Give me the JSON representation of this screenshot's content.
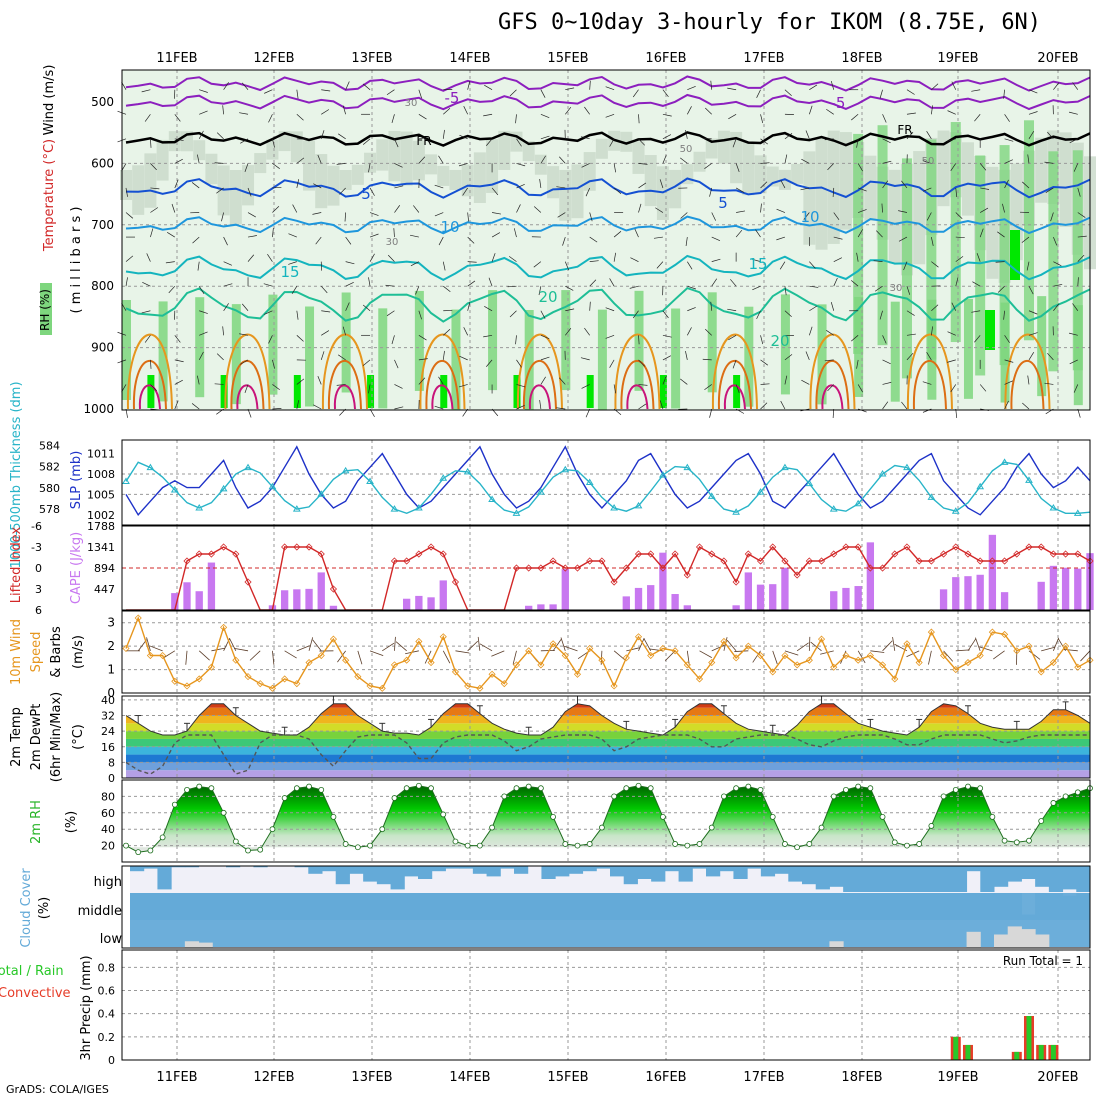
{
  "title": "GFS 0~10day 3-hourly for IKOM (8.75E, 6N)",
  "credit": "GrADS: COLA/IGES",
  "dates": [
    "11FEB",
    "12FEB",
    "13FEB",
    "14FEB",
    "15FEB",
    "16FEB",
    "17FEB",
    "18FEB",
    "19FEB",
    "20FEB"
  ],
  "colors": {
    "rh_light": "#e8f4e8",
    "rh_mid": "#c8d8c8",
    "rh_green": "#7ed67e",
    "rh_bright": "#00e800",
    "iso_purple": "#8c1fbe",
    "iso_blue": "#1450d2",
    "iso_lightblue": "#1e96dc",
    "iso_cyan": "#14b4be",
    "iso_teal": "#1ebe96",
    "iso_orange": "#e6961e",
    "iso_darkorange": "#dc6e14",
    "iso_magenta": "#c8147a",
    "slp": "#1e32c8",
    "thickness": "#28b4c8",
    "lifted": "#d22828",
    "cape": "#c878f0",
    "wind10": "#e6961e",
    "dewpoint": "#555555",
    "rh2m": "#28b428",
    "cloud": "#64aad8",
    "precip_rain": "#28c828",
    "precip_conv": "#e63c28"
  },
  "panels": {
    "upper": {
      "ylabel_rh": "RH (%)",
      "ylabel_temp": "Temperature (°C)",
      "ylabel_wind": "Wind (m/s)",
      "ylabel_mb": "( m i l l i b a r s )",
      "yticks": [
        "500",
        "600",
        "700",
        "800",
        "900",
        "1000"
      ],
      "isotherm_labels": [
        {
          "text": "-5",
          "color": "iso_purple"
        },
        {
          "text": "-5",
          "color": "iso_purple"
        },
        {
          "text": "FR",
          "color": "black"
        },
        {
          "text": "FR",
          "color": "black"
        },
        {
          "text": "5",
          "color": "iso_blue"
        },
        {
          "text": "5",
          "color": "iso_blue"
        },
        {
          "text": "10",
          "color": "iso_lightblue"
        },
        {
          "text": "10",
          "color": "iso_lightblue"
        },
        {
          "text": "15",
          "color": "iso_cyan"
        },
        {
          "text": "15",
          "color": "iso_cyan"
        },
        {
          "text": "20",
          "color": "iso_teal"
        },
        {
          "text": "20",
          "color": "iso_teal"
        },
        {
          "text": "30",
          "color": "gray"
        },
        {
          "text": "30",
          "color": "gray"
        },
        {
          "text": "50",
          "color": "gray"
        },
        {
          "text": "50",
          "color": "gray"
        },
        {
          "text": "30",
          "color": "gray"
        }
      ]
    },
    "thickness": {
      "ylabel_left": "1000-500mb Thickness (dm)",
      "ylabel_right": "SLP (mb)",
      "left_ticks": [
        "584",
        "582",
        "580",
        "578"
      ],
      "right_ticks": [
        "1011",
        "1008",
        "1005",
        "1002"
      ],
      "slp_values": [
        1005,
        1002,
        1004,
        1006,
        1007,
        1006,
        1006,
        1008,
        1010,
        1006,
        1003,
        1004,
        1006,
        1009,
        1012,
        1008,
        1005,
        1003,
        1004,
        1007,
        1009,
        1011,
        1008,
        1005,
        1003,
        1004,
        1006,
        1008,
        1010,
        1012,
        1008,
        1005,
        1003,
        1004,
        1006,
        1009,
        1012,
        1008,
        1005,
        1003,
        1005,
        1007,
        1010,
        1011,
        1008,
        1005,
        1003,
        1004,
        1006,
        1008,
        1010,
        1011,
        1008,
        1004,
        1003,
        1005,
        1007,
        1009,
        1011,
        1008,
        1005,
        1003,
        1004,
        1006,
        1008,
        1010,
        1011,
        1007,
        1005,
        1003,
        1002,
        1004,
        1006,
        1009,
        1011,
        1008,
        1006,
        1007,
        1009,
        1007
      ],
      "thickness_values": [
        580.6,
        582.4,
        581.9,
        581.0,
        579.8,
        578.6,
        578.1,
        578.6,
        579.9,
        581.3,
        581.9,
        581.4,
        580.1,
        578.8,
        578.0,
        578.2,
        579.4,
        580.8,
        581.6,
        581.7,
        580.6,
        579.1,
        578.0,
        577.6,
        578.1,
        579.4,
        580.9,
        581.6,
        581.5,
        580.4,
        578.9,
        577.9,
        577.6,
        578.2,
        579.6,
        581.0,
        581.7,
        581.6,
        580.5,
        579.1,
        578.1,
        577.8,
        578.3,
        579.7,
        581.2,
        582.0,
        581.9,
        580.8,
        579.2,
        578.0,
        577.7,
        578.3,
        579.6,
        581.0,
        581.9,
        581.7,
        580.4,
        578.9,
        578.0,
        577.8,
        578.5,
        579.9,
        581.3,
        582.1,
        581.9,
        580.7,
        579.1,
        578.1,
        577.8,
        578.6,
        580.1,
        581.6,
        582.4,
        582.2,
        580.7,
        579.0,
        578.1,
        577.6,
        577.6,
        577.7
      ],
      "grid_values": [
        1008,
        1005
      ]
    },
    "cape": {
      "ylabel_left": "Lifted Index",
      "ylabel_right": "CAPE (J/kg)",
      "left_ticks": [
        "-6",
        "-3",
        "0",
        "3",
        "6"
      ],
      "right_ticks": [
        "1788",
        "1341",
        "894",
        "447"
      ],
      "lifted_values": [
        6,
        6,
        6,
        6,
        6,
        -1,
        -2,
        -2,
        -3,
        -2,
        2,
        6,
        6,
        -3,
        -3,
        -3,
        -2,
        3,
        6,
        6,
        6,
        6,
        -1,
        -1,
        -2,
        -3,
        -2,
        2,
        6,
        6,
        6,
        6,
        0,
        0,
        0,
        -1,
        0,
        0,
        -1,
        -1,
        2,
        0,
        -2,
        -2,
        0,
        -2,
        1,
        -3,
        -2,
        -1,
        2,
        -2,
        -1,
        -3,
        -1,
        1,
        -1,
        -1,
        -2,
        -3,
        -3,
        0,
        0,
        -2,
        -3,
        -1,
        -1,
        -2,
        -3,
        -2,
        -1,
        -1,
        -1,
        -2,
        -3,
        -3,
        -2,
        -2,
        -2,
        -1
      ],
      "cape_values": [
        0,
        0,
        0,
        0,
        360,
        590,
        400,
        1010,
        0,
        0,
        0,
        0,
        100,
        420,
        440,
        450,
        800,
        90,
        0,
        0,
        0,
        0,
        0,
        240,
        300,
        270,
        630,
        0,
        0,
        0,
        0,
        0,
        0,
        90,
        120,
        120,
        870,
        0,
        0,
        0,
        0,
        290,
        470,
        530,
        1220,
        340,
        100,
        0,
        0,
        0,
        100,
        800,
        540,
        550,
        900,
        0,
        0,
        0,
        400,
        470,
        510,
        1440,
        0,
        0,
        0,
        0,
        0,
        440,
        700,
        720,
        750,
        1600,
        380,
        0,
        0,
        600,
        940,
        900,
        880,
        1210
      ],
      "grid_value": 894
    },
    "wind10": {
      "ylabel": "10m Wind Speed & Barbs (m/s)",
      "yticks": [
        "3",
        "2",
        "1",
        "0"
      ],
      "speed_values": [
        1.9,
        3.2,
        1.6,
        1.6,
        0.5,
        0.3,
        0.6,
        1.1,
        2.8,
        1.4,
        0.7,
        0.4,
        0.2,
        0.6,
        0.4,
        1.3,
        1.6,
        2.3,
        1.4,
        0.7,
        0.3,
        0.2,
        1.2,
        1.4,
        2.2,
        1.3,
        2.4,
        0.9,
        0.3,
        0.2,
        0.8,
        0.4,
        1.2,
        1.8,
        1.2,
        2.1,
        1.6,
        0.8,
        1.9,
        1.4,
        0.3,
        1.5,
        2.4,
        1.6,
        1.9,
        1.8,
        1.2,
        0.6,
        1.3,
        2.2,
        1.5,
        2.0,
        1.6,
        0.9,
        1.6,
        1.2,
        1.4,
        2.3,
        1.1,
        1.6,
        1.4,
        1.6,
        1.2,
        0.6,
        2.1,
        1.3,
        2.6,
        1.6,
        1.0,
        1.3,
        1.6,
        2.6,
        2.5,
        1.8,
        2.0,
        0.9,
        1.3,
        2.0,
        1.1,
        1.4
      ]
    },
    "temp2m": {
      "ylabel": "2m Temp 2m DewPt (6hr Min/Max) (°C)",
      "yticks": [
        "40",
        "32",
        "24",
        "16",
        "8",
        "0"
      ],
      "temp_values": [
        32,
        28,
        24,
        22,
        22,
        24,
        32,
        38,
        38,
        32,
        28,
        24,
        23,
        22,
        22,
        26,
        33,
        38,
        38,
        32,
        28,
        24,
        23,
        23,
        22,
        26,
        33,
        38,
        38,
        33,
        28,
        25,
        23,
        22,
        22,
        26,
        34,
        38,
        37,
        32,
        28,
        25,
        24,
        23,
        22,
        26,
        34,
        38,
        38,
        33,
        28,
        25,
        24,
        23,
        22,
        27,
        34,
        38,
        38,
        33,
        28,
        26,
        24,
        23,
        22,
        26,
        34,
        38,
        37,
        33,
        28,
        26,
        25,
        25,
        25,
        29,
        35,
        35,
        32,
        28
      ],
      "dewpoint_values": [
        8,
        4,
        2,
        6,
        18,
        22,
        22,
        22,
        12,
        2,
        4,
        18,
        22,
        22,
        22,
        20,
        12,
        6,
        14,
        21,
        22,
        22,
        22,
        18,
        10,
        10,
        18,
        21,
        22,
        22,
        22,
        19,
        14,
        16,
        20,
        21,
        22,
        22,
        22,
        20,
        14,
        16,
        20,
        21,
        22,
        22,
        22,
        20,
        16,
        16,
        20,
        21,
        22,
        22,
        22,
        20,
        17,
        16,
        19,
        21,
        22,
        22,
        22,
        20,
        17,
        17,
        20,
        22,
        22,
        22,
        22,
        20,
        18,
        19,
        21,
        22,
        22,
        22,
        22,
        22
      ]
    },
    "rh2m": {
      "ylabel": "2m RH (%)",
      "yticks": [
        "80",
        "60",
        "40",
        "20"
      ],
      "rh_values": [
        20,
        12,
        14,
        30,
        70,
        88,
        92,
        90,
        60,
        25,
        14,
        15,
        40,
        78,
        90,
        92,
        88,
        55,
        22,
        18,
        20,
        40,
        78,
        90,
        93,
        90,
        58,
        25,
        20,
        20,
        42,
        80,
        90,
        92,
        90,
        55,
        22,
        20,
        22,
        42,
        80,
        90,
        93,
        90,
        55,
        22,
        20,
        22,
        42,
        80,
        90,
        92,
        88,
        55,
        22,
        18,
        22,
        42,
        80,
        88,
        92,
        90,
        55,
        24,
        20,
        22,
        44,
        80,
        88,
        92,
        90,
        55,
        26,
        24,
        26,
        50,
        72,
        80,
        85,
        90
      ]
    },
    "cloud": {
      "ylabel": "Cloud Cover (%)",
      "levels": [
        "high",
        "middle",
        "low"
      ],
      "high_values": [
        20,
        10,
        90,
        5,
        5,
        0,
        0,
        5,
        0,
        5,
        0,
        0,
        5,
        30,
        20,
        70,
        30,
        60,
        70,
        90,
        40,
        50,
        20,
        10,
        10,
        30,
        40,
        10,
        30,
        0,
        50,
        40,
        30,
        20,
        10,
        40,
        70,
        50,
        60,
        20,
        60,
        10,
        40,
        20,
        50,
        10,
        40,
        30,
        60,
        70,
        90,
        80,
        100,
        100,
        100,
        100,
        100,
        100,
        100,
        100,
        100,
        20,
        100,
        80,
        60,
        50,
        80,
        100,
        90,
        100
      ],
      "middle_values": [
        100,
        100,
        100,
        100,
        100,
        100,
        100,
        100,
        100,
        100,
        100,
        100,
        100,
        100,
        100,
        100,
        100,
        100,
        100,
        100,
        100,
        100,
        100,
        100,
        100,
        100,
        100,
        100,
        100,
        100,
        100,
        100,
        100,
        100,
        100,
        100,
        100,
        100,
        100,
        100,
        100,
        100,
        100,
        100,
        100,
        100,
        100,
        100,
        100,
        100,
        100,
        100,
        100,
        100,
        100,
        100,
        100,
        100,
        100,
        100,
        100,
        100,
        100,
        100,
        100,
        20,
        100,
        100,
        90,
        100
      ],
      "low_values": [
        0,
        0,
        0,
        0,
        25,
        20,
        0,
        0,
        0,
        0,
        0,
        0,
        0,
        0,
        0,
        0,
        0,
        0,
        0,
        0,
        0,
        0,
        0,
        0,
        0,
        0,
        0,
        0,
        0,
        0,
        0,
        0,
        0,
        0,
        0,
        0,
        0,
        0,
        0,
        0,
        0,
        0,
        0,
        0,
        0,
        0,
        0,
        0,
        0,
        0,
        0,
        25,
        0,
        0,
        0,
        0,
        0,
        0,
        0,
        0,
        0,
        60,
        0,
        50,
        80,
        70,
        50,
        0,
        0,
        0
      ]
    },
    "precip": {
      "ylabel_left": "Total / Rain",
      "ylabel_right": "Convective",
      "ylabel": "3hr Precip (mm)",
      "yticks": [
        "0.8",
        "0.6",
        "0.4",
        "0.2",
        "0"
      ],
      "run_total": "Run Total = 1",
      "values": [
        0,
        0,
        0,
        0,
        0,
        0,
        0,
        0,
        0,
        0,
        0,
        0,
        0,
        0,
        0,
        0,
        0,
        0,
        0,
        0,
        0,
        0,
        0,
        0,
        0,
        0,
        0,
        0,
        0,
        0,
        0,
        0,
        0,
        0,
        0,
        0,
        0,
        0,
        0,
        0,
        0,
        0,
        0,
        0,
        0,
        0,
        0,
        0,
        0,
        0,
        0,
        0,
        0,
        0,
        0,
        0,
        0,
        0,
        0,
        0,
        0,
        0,
        0,
        0,
        0,
        0,
        0,
        0,
        0.2,
        0.13,
        0,
        0,
        0,
        0.07,
        0.38,
        0.13,
        0.13,
        0,
        0,
        0
      ]
    }
  }
}
